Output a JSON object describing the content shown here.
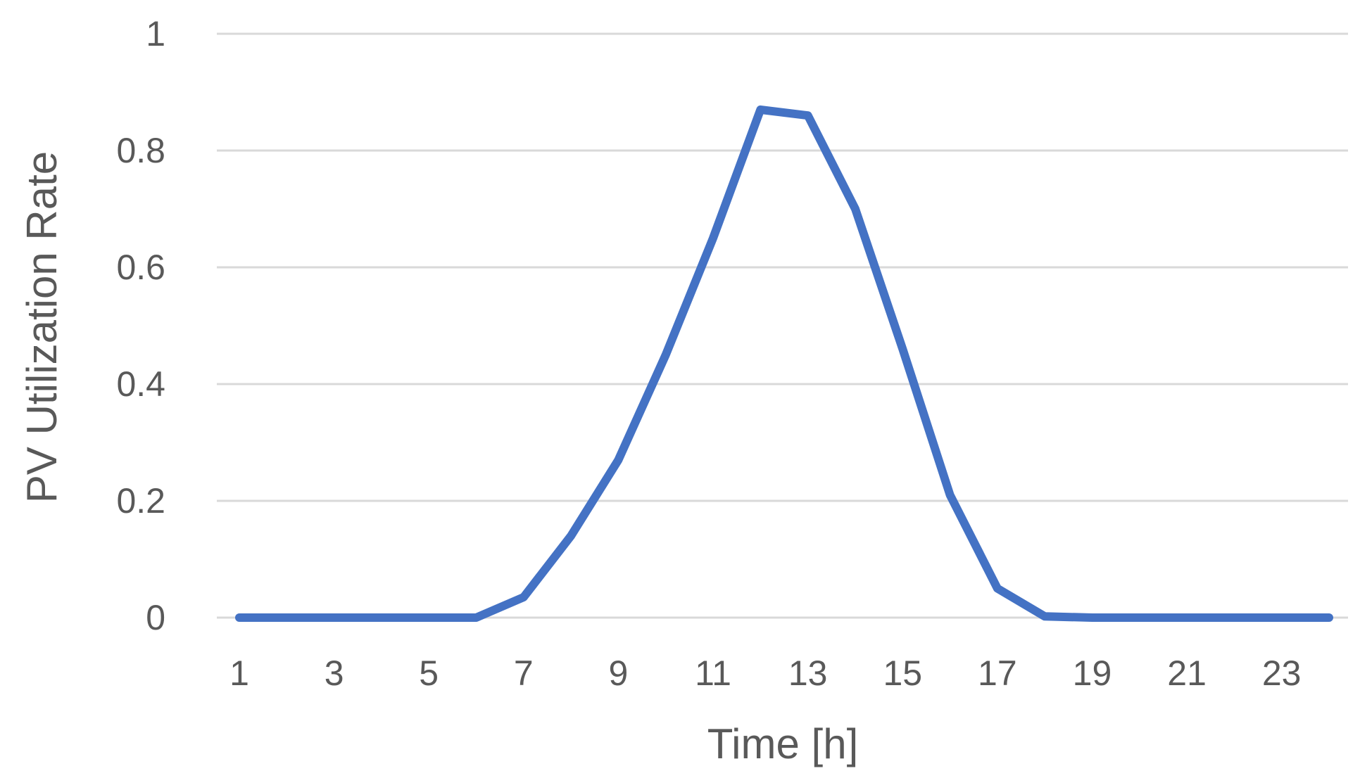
{
  "chart_data": {
    "type": "line",
    "title": "",
    "xlabel": "Time [h]",
    "ylabel": "PV Utilization Rate",
    "x": [
      1,
      2,
      3,
      4,
      5,
      6,
      7,
      8,
      9,
      10,
      11,
      12,
      13,
      14,
      15,
      16,
      17,
      18,
      19,
      20,
      21,
      22,
      23,
      24
    ],
    "x_tick_labels": [
      "1",
      "3",
      "5",
      "7",
      "9",
      "11",
      "13",
      "15",
      "17",
      "19",
      "21",
      "23"
    ],
    "y_tick_labels": [
      "0",
      "0.2",
      "0.4",
      "0.6",
      "0.8",
      "1"
    ],
    "ylim": [
      0,
      1
    ],
    "grid": true,
    "legend": "none",
    "series": [
      {
        "values": [
          0,
          0,
          0,
          0,
          0,
          0,
          0.035,
          0.14,
          0.27,
          0.45,
          0.65,
          0.87,
          0.86,
          0.7,
          0.46,
          0.21,
          0.05,
          0.002,
          0,
          0,
          0,
          0,
          0,
          0
        ],
        "color": "#4472C4"
      }
    ]
  }
}
